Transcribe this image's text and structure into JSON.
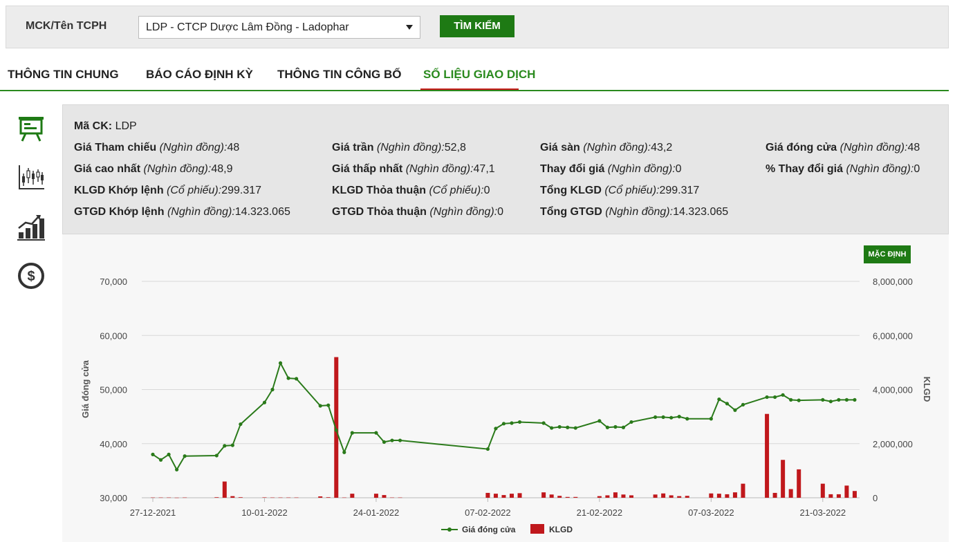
{
  "search": {
    "label": "MCK/Tên TCPH",
    "selected": "LDP - CTCP Dược Lâm Đồng - Ladophar",
    "button": "TÌM KIẾM"
  },
  "tabs": [
    {
      "label": "THÔNG TIN CHUNG",
      "active": false
    },
    {
      "label": "BÁO CÁO ĐỊNH KỲ",
      "active": false
    },
    {
      "label": "THÔNG TIN CÔNG BỐ",
      "active": false
    },
    {
      "label": "SỐ LIỆU GIAO DỊCH",
      "active": true
    }
  ],
  "sidebar": [
    "presentation-board-icon",
    "candlestick-chart-icon",
    "growth-bar-chart-icon",
    "dollar-coin-icon"
  ],
  "info": {
    "ma_ck": {
      "label": "Mã CK:",
      "value": "LDP"
    },
    "rows": [
      [
        {
          "label": "Giá Tham chiếu",
          "unit": "(Nghìn đồng):",
          "value": "48"
        },
        {
          "label": "Giá trần",
          "unit": "(Nghìn đồng):",
          "value": "52,8"
        },
        {
          "label": "Giá sàn",
          "unit": "(Nghìn đồng):",
          "value": "43,2"
        },
        {
          "label": "Giá đóng cửa",
          "unit": "(Nghìn đồng):",
          "value": "48"
        }
      ],
      [
        {
          "label": "Giá cao nhất",
          "unit": "(Nghìn đồng):",
          "value": "48,9"
        },
        {
          "label": "Giá thấp nhất",
          "unit": "(Nghìn đồng):",
          "value": "47,1"
        },
        {
          "label": "Thay đổi giá",
          "unit": "(Nghìn đồng):",
          "value": "0"
        },
        {
          "label": "% Thay đổi giá",
          "unit": "(Nghìn đồng):",
          "value": "0"
        }
      ],
      [
        {
          "label": "KLGD Khớp lệnh",
          "unit": "(Cổ phiếu):",
          "value": "299.317"
        },
        {
          "label": "KLGD Thỏa thuận",
          "unit": "(Cổ phiếu):",
          "value": "0"
        },
        {
          "label": "Tổng KLGD",
          "unit": "(Cổ phiếu):",
          "value": "299.317"
        }
      ],
      [
        {
          "label": "GTGD Khớp lệnh",
          "unit": "(Nghìn đồng):",
          "value": "14.323.065"
        },
        {
          "label": "GTGD Thỏa thuận",
          "unit": "(Nghìn đồng):",
          "value": "0"
        },
        {
          "label": "Tổng GTGD",
          "unit": "(Nghìn đồng):",
          "value": "14.323.065"
        }
      ]
    ]
  },
  "chart_controls": {
    "default_button": "MẶC ĐỊNH"
  },
  "colors": {
    "accent": "#1e7a14",
    "line": "#2a7a1a",
    "bar": "#c0181c",
    "tab_underline": "#c61a1a"
  },
  "chart_data": {
    "type": "line+bar",
    "title": "",
    "x_tick_labels": [
      "27-12-2021",
      "10-01-2022",
      "24-01-2022",
      "07-02-2022",
      "21-02-2022",
      "07-03-2022",
      "21-03-2022"
    ],
    "y_left": {
      "label": "Giá đóng cửa",
      "min": 30000,
      "max": 70000,
      "ticks": [
        "30,000",
        "40,000",
        "50,000",
        "60,000",
        "70,000"
      ]
    },
    "y_right": {
      "label": "KLGD",
      "min": 0,
      "max": 8000000,
      "ticks": [
        "0",
        "2,000,000",
        "4,000,000",
        "6,000,000",
        "8,000,000"
      ]
    },
    "legend": [
      "Giá đóng cửa",
      "KLGD"
    ],
    "legend_placement": "bottom-center",
    "grid": true,
    "x": [
      "2021-12-27",
      "2021-12-28",
      "2021-12-29",
      "2021-12-30",
      "2021-12-31",
      "2022-01-04",
      "2022-01-05",
      "2022-01-06",
      "2022-01-07",
      "2022-01-10",
      "2022-01-11",
      "2022-01-12",
      "2022-01-13",
      "2022-01-14",
      "2022-01-17",
      "2022-01-18",
      "2022-01-19",
      "2022-01-20",
      "2022-01-21",
      "2022-01-24",
      "2022-01-25",
      "2022-01-26",
      "2022-01-27",
      "2022-02-07",
      "2022-02-08",
      "2022-02-09",
      "2022-02-10",
      "2022-02-11",
      "2022-02-14",
      "2022-02-15",
      "2022-02-16",
      "2022-02-17",
      "2022-02-18",
      "2022-02-21",
      "2022-02-22",
      "2022-02-23",
      "2022-02-24",
      "2022-02-25",
      "2022-02-28",
      "2022-03-01",
      "2022-03-02",
      "2022-03-03",
      "2022-03-04",
      "2022-03-07",
      "2022-03-08",
      "2022-03-09",
      "2022-03-10",
      "2022-03-11",
      "2022-03-14",
      "2022-03-15",
      "2022-03-16",
      "2022-03-17",
      "2022-03-18",
      "2022-03-21",
      "2022-03-22",
      "2022-03-23",
      "2022-03-24",
      "2022-03-25"
    ],
    "series": [
      {
        "name": "Giá đóng cửa",
        "type": "line",
        "values": [
          38000,
          37000,
          38000,
          35200,
          37700,
          37800,
          39600,
          39700,
          43600,
          47600,
          50000,
          54900,
          52100,
          52000,
          47000,
          47100,
          42500,
          38400,
          42000,
          42000,
          40300,
          40600,
          40600,
          39000,
          42800,
          43700,
          43800,
          44000,
          43800,
          42900,
          43100,
          43000,
          42900,
          44200,
          43000,
          43100,
          43000,
          44000,
          44900,
          44900,
          44800,
          45000,
          44600,
          44600,
          48200,
          47400,
          46200,
          47200,
          48600,
          48600,
          49000,
          48100,
          48000,
          48100,
          47800,
          48100,
          48100,
          48100
        ]
      },
      {
        "name": "KLGD",
        "type": "bar",
        "values": [
          10000,
          10000,
          10000,
          5000,
          10000,
          20000,
          600000,
          60000,
          20000,
          15000,
          10000,
          10000,
          10000,
          10000,
          50000,
          20000,
          5200000,
          10000,
          150000,
          150000,
          100000,
          10000,
          10000,
          180000,
          150000,
          100000,
          150000,
          170000,
          200000,
          120000,
          70000,
          30000,
          30000,
          60000,
          90000,
          200000,
          120000,
          90000,
          120000,
          160000,
          90000,
          60000,
          70000,
          160000,
          150000,
          130000,
          200000,
          520000,
          3100000,
          180000,
          1400000,
          320000,
          1050000,
          520000,
          130000,
          130000,
          450000,
          250000
        ]
      }
    ]
  }
}
